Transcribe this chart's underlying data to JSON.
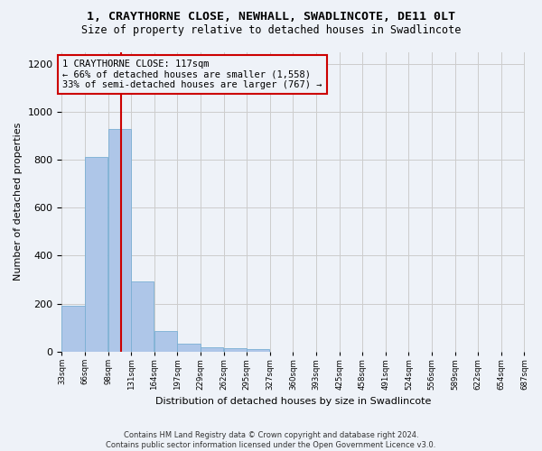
{
  "title": "1, CRAYTHORNE CLOSE, NEWHALL, SWADLINCOTE, DE11 0LT",
  "subtitle": "Size of property relative to detached houses in Swadlincote",
  "xlabel": "Distribution of detached houses by size in Swadlincote",
  "ylabel": "Number of detached properties",
  "bar_color": "#aec6e8",
  "bar_edge_color": "#7aafd4",
  "grid_color": "#cccccc",
  "bg_color": "#eef2f8",
  "annotation_box_color": "#cc0000",
  "annotation_line_color": "#cc0000",
  "property_line_x": 117,
  "annotation_text": "1 CRAYTHORNE CLOSE: 117sqm\n← 66% of detached houses are smaller (1,558)\n33% of semi-detached houses are larger (767) →",
  "footer_text": "Contains HM Land Registry data © Crown copyright and database right 2024.\nContains public sector information licensed under the Open Government Licence v3.0.",
  "bin_left_edges": [
    33,
    66,
    99,
    132,
    165,
    198,
    231,
    264,
    297,
    330,
    363,
    396,
    429,
    462,
    495,
    528,
    561,
    594,
    627,
    660
  ],
  "bin_labels": [
    "33sqm",
    "66sqm",
    "98sqm",
    "131sqm",
    "164sqm",
    "197sqm",
    "229sqm",
    "262sqm",
    "295sqm",
    "327sqm",
    "360sqm",
    "393sqm",
    "425sqm",
    "458sqm",
    "491sqm",
    "524sqm",
    "556sqm",
    "589sqm",
    "622sqm",
    "654sqm",
    "687sqm"
  ],
  "bar_heights": [
    193,
    810,
    930,
    293,
    87,
    35,
    20,
    15,
    12,
    0,
    0,
    0,
    0,
    0,
    0,
    0,
    0,
    0,
    0,
    0
  ],
  "xlim": [
    33,
    693
  ],
  "ylim": [
    0,
    1250
  ],
  "yticks": [
    0,
    200,
    400,
    600,
    800,
    1000,
    1200
  ]
}
